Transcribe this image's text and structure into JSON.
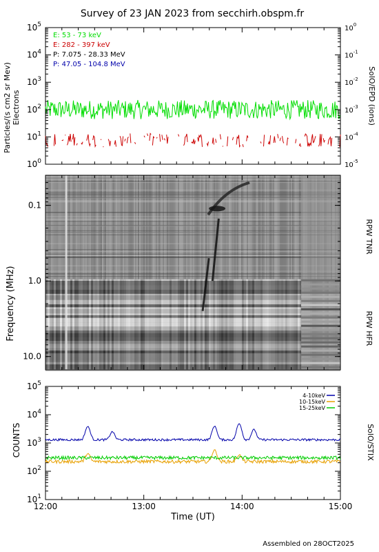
{
  "title": "Survey of 23 JAN 2023 from secchirh.obspm.fr",
  "footer": "Assembled on 28OCT2025",
  "colors": {
    "green": "#00dd00",
    "red": "#cc0000",
    "black": "#000000",
    "blue": "#0000aa",
    "orange": "#e8a000",
    "stix_green": "#00cc00"
  },
  "chart_data": [
    {
      "type": "line",
      "panel": "epd",
      "ylabel_left_1": "Particles/(s cm2 sr Mev)",
      "ylabel_left_2": "Electrons",
      "ylabel_right": "SolO/EPD (ions)",
      "y_scale": "log",
      "ylim": [
        1,
        100000
      ],
      "y_ticks": [
        {
          "base": "10",
          "exp": "0"
        },
        {
          "base": "10",
          "exp": "1"
        },
        {
          "base": "10",
          "exp": "2"
        },
        {
          "base": "10",
          "exp": "3"
        },
        {
          "base": "10",
          "exp": "4"
        },
        {
          "base": "10",
          "exp": "5"
        }
      ],
      "y2lim": [
        1e-05,
        1
      ],
      "y2_ticks": [
        {
          "base": "10",
          "exp": "-5"
        },
        {
          "base": "10",
          "exp": "-4"
        },
        {
          "base": "10",
          "exp": "-3"
        },
        {
          "base": "10",
          "exp": "-2"
        },
        {
          "base": "10",
          "exp": "-1"
        },
        {
          "base": "10",
          "exp": "0"
        }
      ],
      "legend": [
        {
          "label": "E: 53 - 73 keV",
          "color": "#00dd00"
        },
        {
          "label": "E: 282 - 397 keV",
          "color": "#cc0000"
        },
        {
          "label": "P: 7.075 - 28.33 MeV",
          "color": "#000000"
        },
        {
          "label": "P: 47.05 - 104.8 MeV",
          "color": "#0000aa"
        }
      ],
      "series": [
        {
          "name": "E: 53 - 73 keV",
          "typical": 100,
          "range": [
            40,
            250
          ]
        },
        {
          "name": "E: 282 - 397 keV",
          "typical": 6,
          "range": [
            4,
            20
          ],
          "sparse": true
        }
      ]
    },
    {
      "type": "heatmap",
      "panel": "rpw",
      "ylabel": "Frequency (MHz)",
      "y_scale": "log",
      "y_reversed": true,
      "ylim": [
        0.04,
        15
      ],
      "y_ticks": [
        "0.1",
        "1.0",
        "10.0"
      ],
      "label_right_upper": "RPW TNR",
      "label_right_lower": "RPW HFR",
      "features": [
        {
          "kind": "type III burst",
          "time_h": 13.62,
          "freq_range_mhz": [
            0.5,
            2.5
          ]
        },
        {
          "kind": "type III burst",
          "time_h": 13.72,
          "freq_range_mhz": [
            0.15,
            1.0
          ]
        },
        {
          "kind": "drift feature",
          "time_h": 13.9,
          "freq_range_mhz": [
            0.05,
            0.12
          ]
        }
      ]
    },
    {
      "type": "line",
      "panel": "stix",
      "ylabel": "COUNTS",
      "ylabel_right": "SolO/STIX",
      "y_scale": "log",
      "ylim": [
        10,
        100000
      ],
      "y_ticks": [
        {
          "base": "10",
          "exp": "1"
        },
        {
          "base": "10",
          "exp": "2"
        },
        {
          "base": "10",
          "exp": "3"
        },
        {
          "base": "10",
          "exp": "4"
        },
        {
          "base": "10",
          "exp": "5"
        }
      ],
      "legend": [
        {
          "label": "4-10keV",
          "color": "#0000aa"
        },
        {
          "label": "10-15keV",
          "color": "#e8a000"
        },
        {
          "label": "15-25keV",
          "color": "#00cc00"
        }
      ],
      "series": [
        {
          "name": "4-10keV",
          "baseline": 1300,
          "peaks": [
            {
              "t": 12.43,
              "v": 3800
            },
            {
              "t": 12.68,
              "v": 2500
            },
            {
              "t": 13.72,
              "v": 3900
            },
            {
              "t": 13.97,
              "v": 4800
            },
            {
              "t": 14.12,
              "v": 3000
            }
          ]
        },
        {
          "name": "10-15keV",
          "baseline": 220,
          "peaks": [
            {
              "t": 12.43,
              "v": 420
            },
            {
              "t": 13.72,
              "v": 560
            },
            {
              "t": 13.97,
              "v": 380
            }
          ]
        },
        {
          "name": "15-25keV",
          "baseline": 300,
          "peaks": []
        }
      ]
    }
  ],
  "x_axis": {
    "label": "Time (UT)",
    "xlim": [
      12,
      15
    ],
    "tick_labels": [
      "12:00",
      "13:00",
      "14:00",
      "15:00"
    ]
  }
}
